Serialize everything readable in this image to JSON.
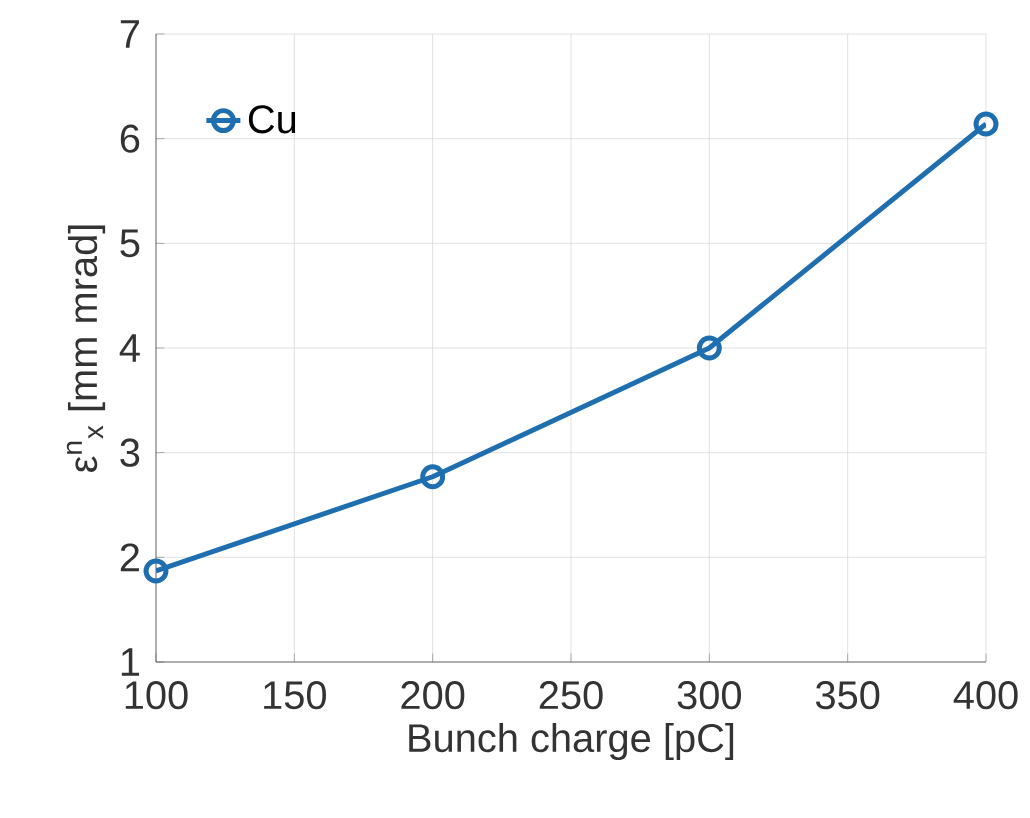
{
  "chart_data": {
    "type": "line",
    "xlabel": "Bunch charge [pC]",
    "ylabel": "ε$^{n}$$_{x}$ [mm mrad]",
    "x": [
      100,
      200,
      300,
      400
    ],
    "series": [
      {
        "name": "Cu",
        "color": "#1f6fb0",
        "values": [
          1.87,
          2.77,
          4.0,
          6.14
        ]
      }
    ],
    "xlim": [
      100,
      400
    ],
    "xticks": [
      100,
      150,
      200,
      250,
      300,
      350,
      400
    ],
    "ylim": [
      1,
      7
    ],
    "yticks": [
      1,
      2,
      3,
      4,
      5,
      6,
      7
    ],
    "grid": true,
    "legend": "top left",
    "marker": "circle",
    "line_style": "solid"
  }
}
